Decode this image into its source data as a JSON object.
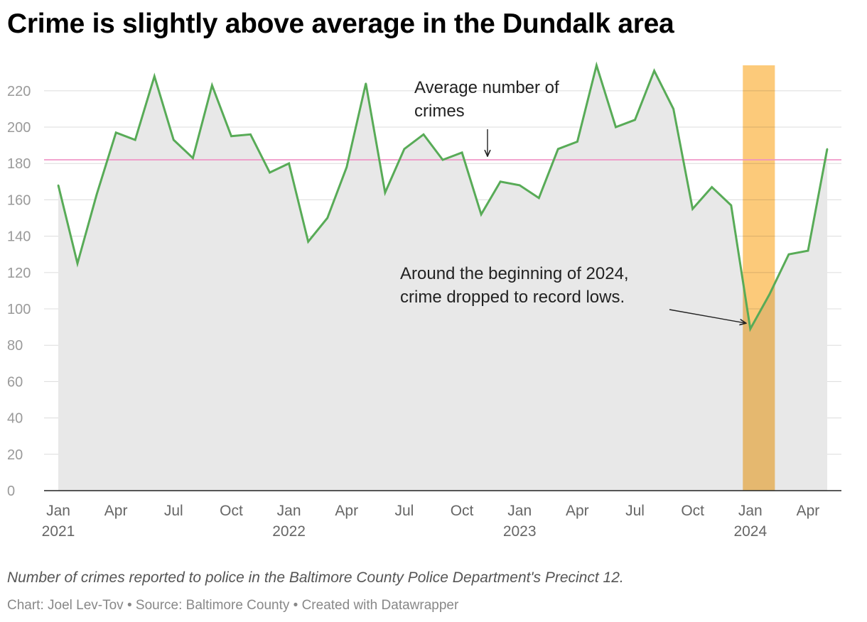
{
  "title": "Crime is slightly above average in the Dundalk area",
  "note": "Number of crimes reported to police in the Baltimore County Police Department's Precinct 12.",
  "credit": "Chart: Joel Lev-Tov • Source: Baltimore County • Created with Datawrapper",
  "colors": {
    "line": "#58ab57",
    "area": "#e8e8e8",
    "average": "#ef8fc4",
    "highlight": "#fcc46c",
    "grid": "#dcdcdc"
  },
  "chart_data": {
    "type": "area",
    "title": "Crime is slightly above average in the Dundalk area",
    "xlabel": "",
    "ylabel": "",
    "ylim": [
      0,
      234
    ],
    "yticks": [
      0,
      20,
      40,
      60,
      80,
      100,
      120,
      140,
      160,
      180,
      200,
      220
    ],
    "average": 182,
    "x_tick_labels": [
      {
        "month": 0,
        "label": "Jan",
        "year": "2021"
      },
      {
        "month": 3,
        "label": "Apr",
        "year": ""
      },
      {
        "month": 6,
        "label": "Jul",
        "year": ""
      },
      {
        "month": 9,
        "label": "Oct",
        "year": ""
      },
      {
        "month": 12,
        "label": "Jan",
        "year": "2022"
      },
      {
        "month": 15,
        "label": "Apr",
        "year": ""
      },
      {
        "month": 18,
        "label": "Jul",
        "year": ""
      },
      {
        "month": 21,
        "label": "Oct",
        "year": ""
      },
      {
        "month": 24,
        "label": "Jan",
        "year": "2023"
      },
      {
        "month": 27,
        "label": "Apr",
        "year": ""
      },
      {
        "month": 30,
        "label": "Jul",
        "year": ""
      },
      {
        "month": 33,
        "label": "Oct",
        "year": ""
      },
      {
        "month": 36,
        "label": "Jan",
        "year": "2024"
      },
      {
        "month": 39,
        "label": "Apr",
        "year": ""
      }
    ],
    "highlight_range": [
      "2023-12-16",
      "2024-02-15"
    ],
    "series": [
      {
        "name": "Crimes reported",
        "x": [
          "2021-01",
          "2021-02",
          "2021-03",
          "2021-04",
          "2021-05",
          "2021-06",
          "2021-07",
          "2021-08",
          "2021-09",
          "2021-10",
          "2021-11",
          "2021-12",
          "2022-01",
          "2022-02",
          "2022-03",
          "2022-04",
          "2022-05",
          "2022-06",
          "2022-07",
          "2022-08",
          "2022-09",
          "2022-10",
          "2022-11",
          "2022-12",
          "2023-01",
          "2023-02",
          "2023-03",
          "2023-04",
          "2023-05",
          "2023-06",
          "2023-07",
          "2023-08",
          "2023-09",
          "2023-10",
          "2023-11",
          "2023-12",
          "2024-01",
          "2024-02",
          "2024-03",
          "2024-04",
          "2024-05"
        ],
        "values": [
          168,
          125,
          163,
          197,
          193,
          228,
          193,
          183,
          223,
          195,
          196,
          175,
          180,
          137,
          150,
          178,
          224,
          164,
          188,
          196,
          182,
          186,
          152,
          170,
          168,
          161,
          188,
          192,
          234,
          200,
          204,
          231,
          210,
          155,
          167,
          157,
          89,
          108,
          130,
          132,
          188
        ]
      }
    ],
    "annotations": [
      {
        "text_lines": [
          "Average number of",
          "crimes"
        ]
      },
      {
        "text_lines": [
          "Around the beginning of 2024,",
          "crime dropped to record lows."
        ]
      }
    ]
  }
}
